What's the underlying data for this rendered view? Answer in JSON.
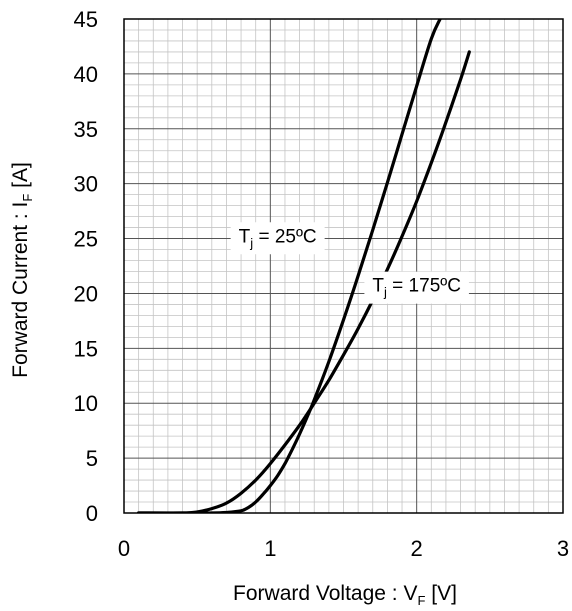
{
  "chart_data": {
    "type": "line",
    "xlabel": {
      "main": "Forward Voltage : V",
      "sub": "F",
      "unit": " [V]"
    },
    "ylabel": {
      "main": "Forward Current : I",
      "sub": "F",
      "unit": " [A]"
    },
    "xlim": [
      0,
      3
    ],
    "ylim": [
      0,
      45
    ],
    "xticks": [
      "0",
      "1",
      "2",
      "3"
    ],
    "yticks": [
      "0",
      "5",
      "10",
      "15",
      "20",
      "25",
      "30",
      "35",
      "40",
      "45"
    ],
    "x_minor_step": 0.1,
    "y_minor_step": 1,
    "grid": true,
    "series": [
      {
        "name": "T_j = 25ºC",
        "x": [
          0.1,
          0.4,
          0.6,
          0.7,
          0.8,
          0.85,
          0.9,
          0.95,
          1.0,
          1.05,
          1.1,
          1.15,
          1.2,
          1.25,
          1.3,
          1.4,
          1.5,
          1.6,
          1.7,
          1.8,
          1.9,
          2.0,
          2.1,
          2.16
        ],
        "y": [
          0.0,
          0.0,
          0.0,
          0.05,
          0.2,
          0.5,
          1.0,
          1.7,
          2.5,
          3.4,
          4.5,
          5.8,
          7.2,
          8.7,
          10.3,
          13.8,
          17.6,
          21.6,
          25.8,
          30.1,
          34.5,
          38.9,
          43.2,
          45.0
        ],
        "color": "#000000"
      },
      {
        "name": "T_j = 175ºC",
        "x": [
          0.1,
          0.4,
          0.5,
          0.6,
          0.7,
          0.8,
          0.9,
          1.0,
          1.1,
          1.2,
          1.3,
          1.4,
          1.5,
          1.6,
          1.7,
          1.8,
          1.9,
          2.0,
          2.1,
          2.2,
          2.3,
          2.36
        ],
        "y": [
          0.0,
          0.0,
          0.1,
          0.4,
          0.9,
          1.8,
          3.0,
          4.5,
          6.2,
          8.0,
          10.0,
          12.1,
          14.4,
          16.8,
          19.4,
          22.2,
          25.2,
          28.4,
          31.9,
          35.6,
          39.5,
          42.0
        ],
        "color": "#000000"
      }
    ],
    "annotations": [
      {
        "main": "T",
        "sub": "j",
        "rest": " = 25ºC",
        "x": 1.05,
        "y": 25.3
      },
      {
        "main": "T",
        "sub": "j",
        "rest": " = 175ºC",
        "x": 2.0,
        "y": 20.8
      }
    ]
  }
}
